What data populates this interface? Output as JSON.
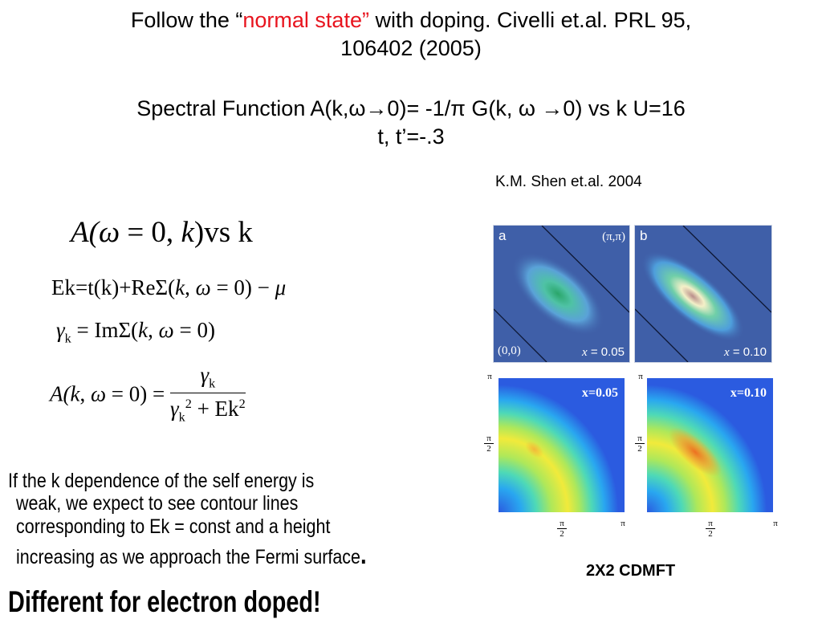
{
  "title": {
    "line1_prefix": "Follow the  “",
    "line1_red": "normal state”",
    "line1_suffix": " with doping. Civelli et.al. PRL 95,",
    "line2": "106402 (2005)"
  },
  "subtitle": {
    "line1": "Spectral Function A(k,ω→0)= -1/π G(k, ω →0) vs k   U=16",
    "line2": "t, t’=-.3"
  },
  "reference": "K.M. Shen et.al. 2004",
  "equations": {
    "eq1_A": "A(",
    "eq1_omega": "ω",
    "eq1_eq0": " = 0, ",
    "eq1_k": "k",
    "eq1_rest": ")vs k",
    "eq2_left": "Ek=t(k)+ReΣ(",
    "eq2_k": "k",
    "eq2_comma": ", ",
    "eq2_omega": "ω",
    "eq2_rest": " = 0) − ",
    "eq2_mu": "μ",
    "eq3_gamma": "γ",
    "eq3_sub": "k",
    "eq3_mid": " = ImΣ(",
    "eq3_k": "k",
    "eq3_comma": ", ",
    "eq3_omega": "ω",
    "eq3_rest": " = 0)",
    "eq4_A": "A(",
    "eq4_k": "k",
    "eq4_comma": ", ",
    "eq4_omega": "ω",
    "eq4_rest": " = 0) = ",
    "eq4_num_gamma": "γ",
    "eq4_num_sub": "k",
    "eq4_den_gamma": "γ",
    "eq4_den_sub": "k",
    "eq4_den_sup": "2",
    "eq4_den_plus": " + Ek",
    "eq4_den_sup2": "2"
  },
  "panels": {
    "a": {
      "letter": "a",
      "corner_top": "(π,π)",
      "corner_bottom": "(0,0)",
      "x_label": "x",
      "x_value": " = 0.05"
    },
    "b": {
      "letter": "b",
      "x_label": "x",
      "x_value": " = 0.10"
    }
  },
  "cdmft": {
    "left_label": "x=0.05",
    "right_label": "x=0.10",
    "tick_pi": "π",
    "tick_half_num": "π",
    "tick_half_den": "2",
    "caption": "2X2 CDMFT"
  },
  "body": {
    "line1": "If the k dependence of the self energy is",
    "line2": "weak, we expect to see contour lines",
    "line3": "corresponding to Ek = const and a height",
    "line4": "increasing as we approach the Fermi surface",
    "line4_end": "."
  },
  "footer": "Different for electron doped!",
  "colors": {
    "accent_red": "#e8141e",
    "panel_blue": "#3f5fa8",
    "contour_blue": "#2b5be0"
  }
}
